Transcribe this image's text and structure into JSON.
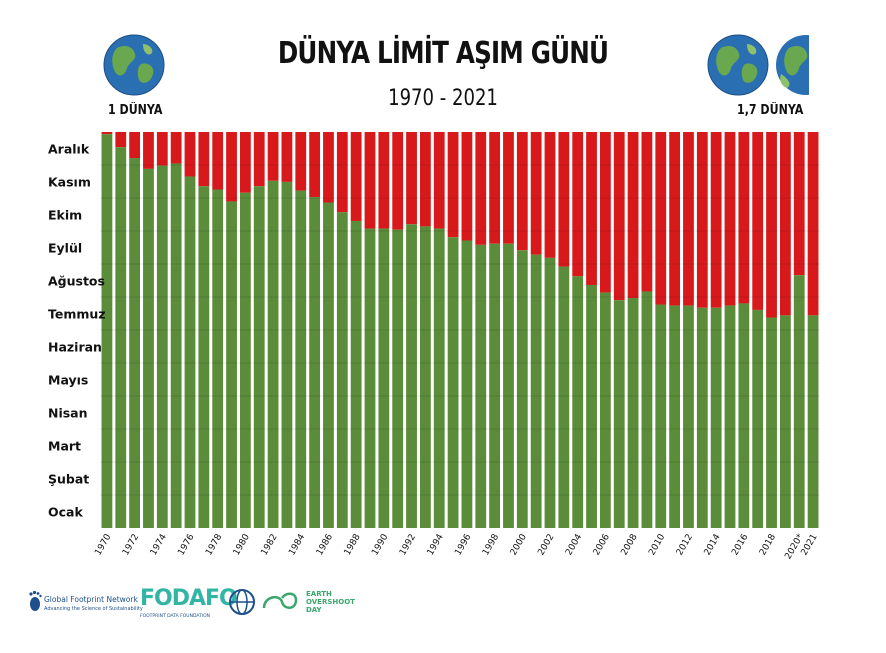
{
  "header": {
    "title": "DÜNYA LİMİT AŞIM GÜNÜ",
    "subtitle": "1970 - 2021",
    "left_label": "1 DÜNYA",
    "right_label": "1,7 DÜNYA"
  },
  "logos": {
    "gfn_name": "Global Footprint Network",
    "gfn_tagline": "Advancing the Science of Sustainability",
    "fodafo_name": "FODAFO",
    "fodafo_sub": "FOOTPRINT DATA FOUNDATION",
    "eod_line1": "EARTH",
    "eod_line2": "OVERSHOOT",
    "eod_line3": "DAY"
  },
  "colors": {
    "overshoot_red": "#d7191c",
    "within_green": "#5b8c3a",
    "ocean_blue": "#2b6fb3",
    "land_green": "#6aa84f"
  },
  "chart_data": {
    "type": "bar",
    "stacked": true,
    "title": "DÜNYA LİMİT AŞIM GÜNÜ",
    "subtitle": "1970 - 2021",
    "y_ticks": [
      "Ocak",
      "Şubat",
      "Mart",
      "Nisan",
      "Mayıs",
      "Haziran",
      "Temmuz",
      "Ağustos",
      "Eylül",
      "Ekim",
      "Kasım",
      "Aralık"
    ],
    "ylim": [
      0,
      365
    ],
    "x_tick_labels": [
      "1970",
      "1972",
      "1974",
      "1976",
      "1978",
      "1980",
      "1982",
      "1984",
      "1986",
      "1988",
      "1990",
      "1992",
      "1994",
      "1996",
      "1998",
      "2000",
      "2002",
      "2004",
      "2006",
      "2008",
      "2010",
      "2012",
      "2014",
      "2016",
      "2018",
      "2020*",
      "2021"
    ],
    "categories": [
      "1970",
      "1971",
      "1972",
      "1973",
      "1974",
      "1975",
      "1976",
      "1977",
      "1978",
      "1979",
      "1980",
      "1981",
      "1982",
      "1983",
      "1984",
      "1985",
      "1986",
      "1987",
      "1988",
      "1989",
      "1990",
      "1991",
      "1992",
      "1993",
      "1994",
      "1995",
      "1996",
      "1997",
      "1998",
      "1999",
      "2000",
      "2001",
      "2002",
      "2003",
      "2004",
      "2005",
      "2006",
      "2007",
      "2008",
      "2009",
      "2010",
      "2011",
      "2012",
      "2013",
      "2014",
      "2015",
      "2016",
      "2017",
      "2018",
      "2019",
      "2020",
      "2021"
    ],
    "series": [
      {
        "name": "",
        "color": "#5b8c3a",
        "values": [
          363,
          351,
          341,
          331,
          334,
          336,
          324,
          315,
          312,
          301,
          309,
          315,
          320,
          319,
          311,
          305,
          300,
          291,
          283,
          276,
          276,
          275,
          280,
          278,
          276,
          268,
          265,
          261,
          262,
          262,
          256,
          252,
          249,
          241,
          232,
          224,
          217,
          210,
          212,
          218,
          206,
          205,
          205,
          203,
          203,
          205,
          207,
          201,
          194,
          196,
          233,
          196
        ]
      }
    ],
    "remainder_color": "#d7191c",
    "grid": false,
    "legend": "none"
  }
}
